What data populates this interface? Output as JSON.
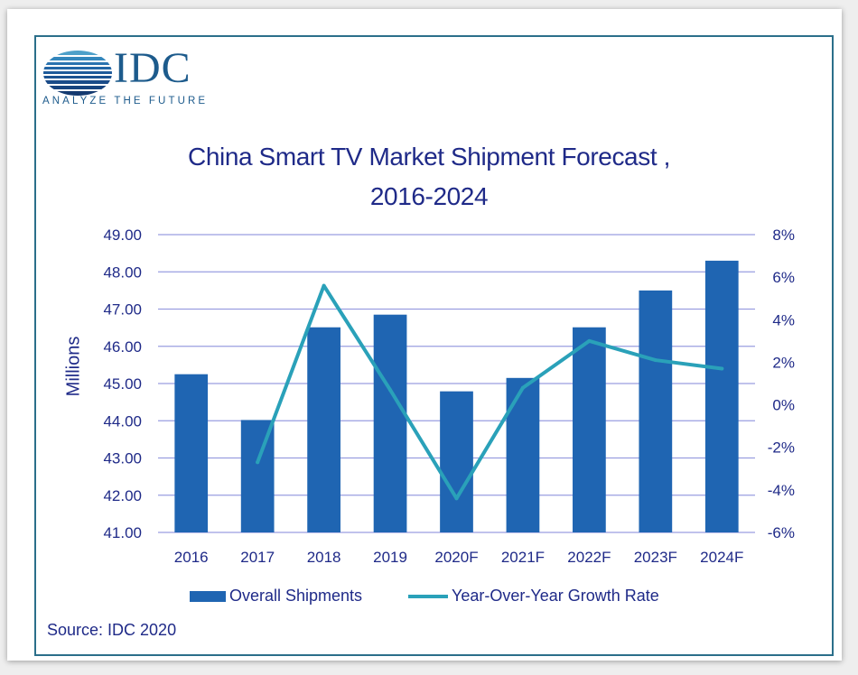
{
  "logo": {
    "name": "IDC",
    "tagline": "ANALYZE THE FUTURE",
    "color": "#1d5b8c"
  },
  "source": "Source: IDC 2020",
  "chart_data": {
    "type": "bar",
    "title_lines": [
      "China Smart TV Market Shipment Forecast ,",
      "2016-2024"
    ],
    "categories": [
      "2016",
      "2017",
      "2018",
      "2019",
      "2020F",
      "2021F",
      "2022F",
      "2023F",
      "2024F"
    ],
    "series": [
      {
        "name": "Overall Shipments",
        "type": "bar",
        "axis": "left",
        "color": "#1f65b2",
        "values": [
          45.25,
          44.02,
          46.51,
          46.85,
          44.79,
          45.15,
          46.51,
          47.5,
          48.3
        ]
      },
      {
        "name": "Year-Over-Year Growth Rate",
        "type": "line",
        "axis": "right",
        "color": "#2aa1b9",
        "values": [
          null,
          -2.7,
          5.6,
          0.7,
          -4.4,
          0.8,
          3.0,
          2.1,
          1.7
        ]
      }
    ],
    "ylabel": "Millions",
    "ylim": [
      41,
      49
    ],
    "yticks": [
      "41.00",
      "42.00",
      "43.00",
      "44.00",
      "45.00",
      "46.00",
      "47.00",
      "48.00",
      "49.00"
    ],
    "y2lim": [
      -6,
      8
    ],
    "y2ticks": [
      "-6%",
      "-4%",
      "-2%",
      "0%",
      "2%",
      "4%",
      "6%",
      "8%"
    ],
    "grid": true,
    "legend": "bottom"
  }
}
